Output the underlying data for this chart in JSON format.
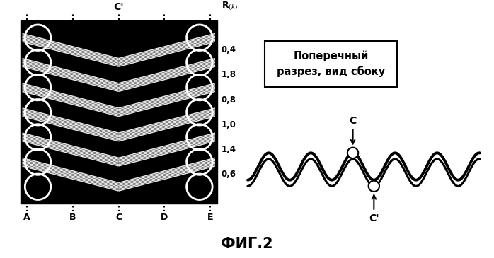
{
  "bg_color": "#ffffff",
  "left_panel_bg": "#000000",
  "title": "ФИГ.2",
  "bottom_labels": [
    "A",
    "B",
    "C",
    "D",
    "E"
  ],
  "r_values": [
    "0,4",
    "1,8",
    "0,8",
    "1,0",
    "1,4",
    "0,6"
  ],
  "box_text": "Поперечный\nразрез, вид сбоку",
  "c_label": "C",
  "c_prime_label": "C'",
  "circle_color": "#ffffff",
  "line_color": "#ffffff",
  "wave_color": "#000000"
}
